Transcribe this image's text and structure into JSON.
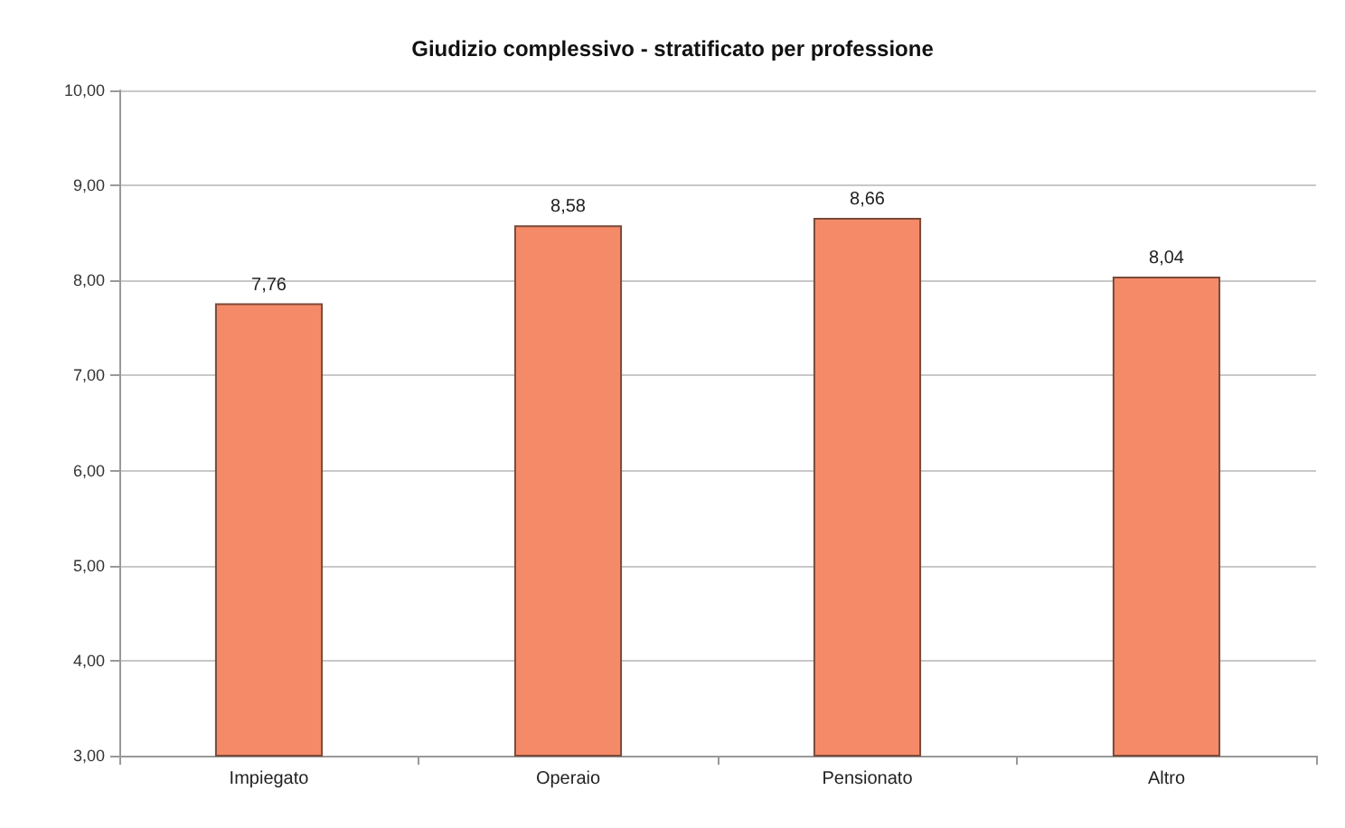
{
  "chart_data": {
    "type": "bar",
    "title": "Giudizio complessivo - stratificato per professione",
    "categories": [
      "Impiegato",
      "Operaio",
      "Pensionato",
      "Altro"
    ],
    "values": [
      7.76,
      8.58,
      8.66,
      8.04
    ],
    "value_labels": [
      "7,76",
      "8,58",
      "8,66",
      "8,04"
    ],
    "color": "#f58a68",
    "ylim": [
      3,
      10
    ],
    "yticks": [
      {
        "value": 3,
        "label": "3,00"
      },
      {
        "value": 4,
        "label": "4,00"
      },
      {
        "value": 5,
        "label": "5,00"
      },
      {
        "value": 6,
        "label": "6,00"
      },
      {
        "value": 7,
        "label": "7,00"
      },
      {
        "value": 8,
        "label": "8,00"
      },
      {
        "value": 9,
        "label": "9,00"
      },
      {
        "value": 10,
        "label": "10,00"
      }
    ],
    "grid": "y"
  }
}
